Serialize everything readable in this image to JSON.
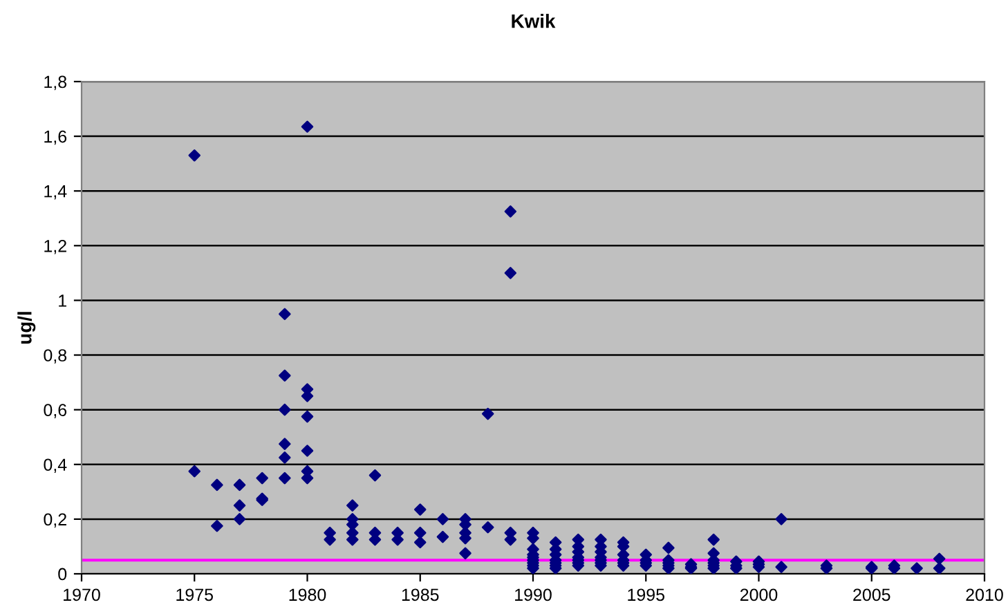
{
  "chart_data": {
    "type": "scatter",
    "title": "Kwik",
    "ylabel": "ug/l",
    "x": [
      1975,
      1975,
      1976,
      1976,
      1977,
      1977,
      1977,
      1978,
      1978,
      1978,
      1979,
      1979,
      1979,
      1979,
      1979,
      1979,
      1980,
      1980,
      1980,
      1980,
      1980,
      1980,
      1980,
      1981,
      1981,
      1982,
      1982,
      1982,
      1982,
      1982,
      1983,
      1983,
      1983,
      1984,
      1984,
      1985,
      1985,
      1985,
      1986,
      1986,
      1987,
      1987,
      1987,
      1987,
      1987,
      1988,
      1988,
      1989,
      1989,
      1989,
      1989,
      1990,
      1990,
      1990,
      1990,
      1990,
      1990,
      1990,
      1990,
      1990,
      1991,
      1991,
      1991,
      1991,
      1991,
      1991,
      1991,
      1992,
      1992,
      1992,
      1992,
      1992,
      1992,
      1992,
      1993,
      1993,
      1993,
      1993,
      1993,
      1993,
      1993,
      1994,
      1994,
      1994,
      1994,
      1994,
      1994,
      1995,
      1995,
      1995,
      1995,
      1996,
      1996,
      1996,
      1996,
      1996,
      1997,
      1997,
      1997,
      1998,
      1998,
      1998,
      1998,
      1998,
      1998,
      1999,
      1999,
      1999,
      2000,
      2000,
      2000,
      2001,
      2001,
      2003,
      2003,
      2005,
      2005,
      2006,
      2006,
      2007,
      2008,
      2008
    ],
    "series": [
      {
        "color": "#000080",
        "values": [
          1.53,
          0.375,
          0.325,
          0.175,
          0.325,
          0.25,
          0.2,
          0.35,
          0.275,
          0.27,
          0.95,
          0.725,
          0.6,
          0.475,
          0.425,
          0.35,
          1.635,
          0.675,
          0.65,
          0.575,
          0.45,
          0.375,
          0.35,
          0.15,
          0.125,
          0.25,
          0.2,
          0.18,
          0.15,
          0.125,
          0.36,
          0.15,
          0.125,
          0.15,
          0.125,
          0.235,
          0.15,
          0.115,
          0.2,
          0.135,
          0.2,
          0.18,
          0.15,
          0.13,
          0.075,
          0.585,
          0.17,
          1.325,
          1.1,
          0.15,
          0.125,
          0.15,
          0.13,
          0.09,
          0.07,
          0.06,
          0.05,
          0.04,
          0.03,
          0.02,
          0.115,
          0.09,
          0.07,
          0.05,
          0.04,
          0.03,
          0.02,
          0.125,
          0.1,
          0.08,
          0.06,
          0.05,
          0.04,
          0.03,
          0.125,
          0.1,
          0.08,
          0.06,
          0.05,
          0.04,
          0.03,
          0.115,
          0.1,
          0.07,
          0.05,
          0.04,
          0.03,
          0.07,
          0.05,
          0.04,
          0.03,
          0.095,
          0.05,
          0.04,
          0.03,
          0.02,
          0.035,
          0.025,
          0.02,
          0.125,
          0.075,
          0.05,
          0.04,
          0.03,
          0.02,
          0.045,
          0.03,
          0.02,
          0.045,
          0.035,
          0.025,
          0.2,
          0.025,
          0.03,
          0.02,
          0.025,
          0.02,
          0.03,
          0.02,
          0.02,
          0.055,
          0.02
        ]
      }
    ],
    "xlim": [
      1970,
      2010
    ],
    "xticks": [
      1970,
      1975,
      1980,
      1985,
      1990,
      1995,
      2000,
      2005,
      2010
    ],
    "ylim": [
      0,
      1.8
    ],
    "yticks": [
      {
        "value": 0,
        "label": "0"
      },
      {
        "value": 0.2,
        "label": "0,2"
      },
      {
        "value": 0.4,
        "label": "0,4"
      },
      {
        "value": 0.6,
        "label": "0,6"
      },
      {
        "value": 0.8,
        "label": "0,8"
      },
      {
        "value": 1,
        "label": "1"
      },
      {
        "value": 1.2,
        "label": "1,2"
      },
      {
        "value": 1.4,
        "label": "1,4"
      },
      {
        "value": 1.6,
        "label": "1,6"
      },
      {
        "value": 1.8,
        "label": "1,8"
      }
    ],
    "ref_lines": [
      {
        "axis": "y",
        "value": 0.05,
        "color": "#ff00ff"
      }
    ],
    "grid": "y",
    "marker": "diamond",
    "legend": false
  }
}
